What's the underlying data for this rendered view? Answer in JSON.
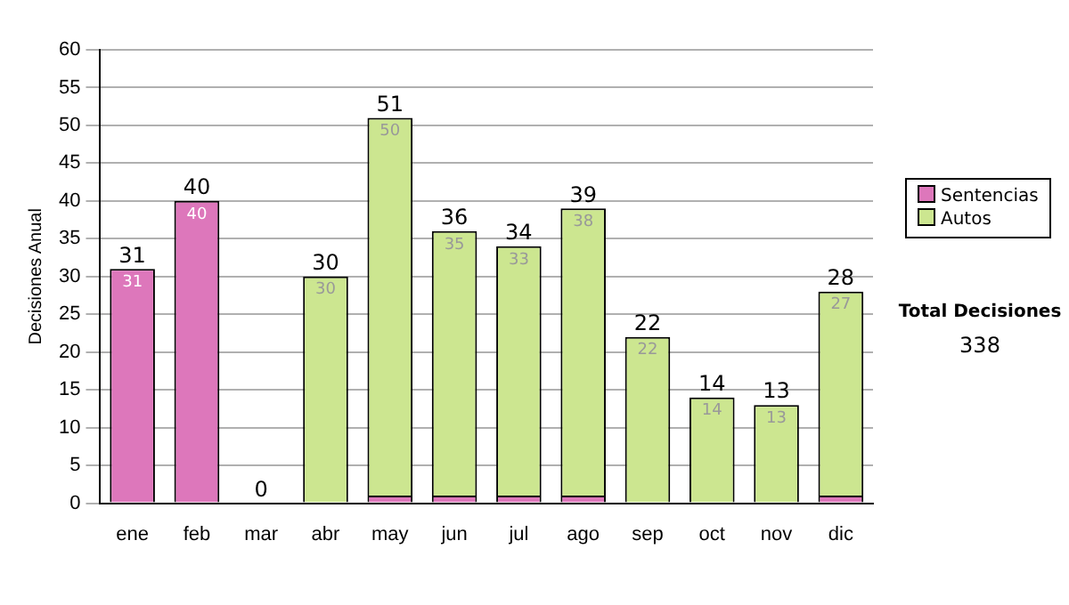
{
  "chart_data": {
    "type": "bar",
    "stacked": true,
    "ylabel": "Decisiones Anual",
    "categories": [
      "ene",
      "feb",
      "mar",
      "abr",
      "may",
      "jun",
      "jul",
      "ago",
      "sep",
      "oct",
      "nov",
      "dic"
    ],
    "series": [
      {
        "name": "Sentencias",
        "color": "#dd77bb",
        "values": [
          31,
          40,
          0,
          0,
          1,
          1,
          1,
          1,
          0,
          0,
          0,
          1
        ],
        "value_labels": [
          "31",
          "40",
          null,
          null,
          null,
          null,
          null,
          null,
          null,
          null,
          null,
          null
        ]
      },
      {
        "name": "Autos",
        "color": "#cce690",
        "values": [
          0,
          0,
          0,
          30,
          50,
          35,
          33,
          38,
          22,
          14,
          13,
          27
        ],
        "value_labels": [
          null,
          null,
          null,
          "30",
          "50",
          "35",
          "33",
          "38",
          "22",
          "14",
          "13",
          "27"
        ]
      }
    ],
    "totals": [
      "31",
      "40",
      "0",
      "30",
      "51",
      "36",
      "34",
      "39",
      "22",
      "14",
      "13",
      "28"
    ],
    "ylim": [
      0,
      60
    ],
    "yticks": [
      0,
      5,
      10,
      15,
      20,
      25,
      30,
      35,
      40,
      45,
      50,
      55,
      60
    ],
    "grid": "y",
    "legend": "right",
    "annotations": [
      "Total Decisiones",
      "338"
    ]
  }
}
